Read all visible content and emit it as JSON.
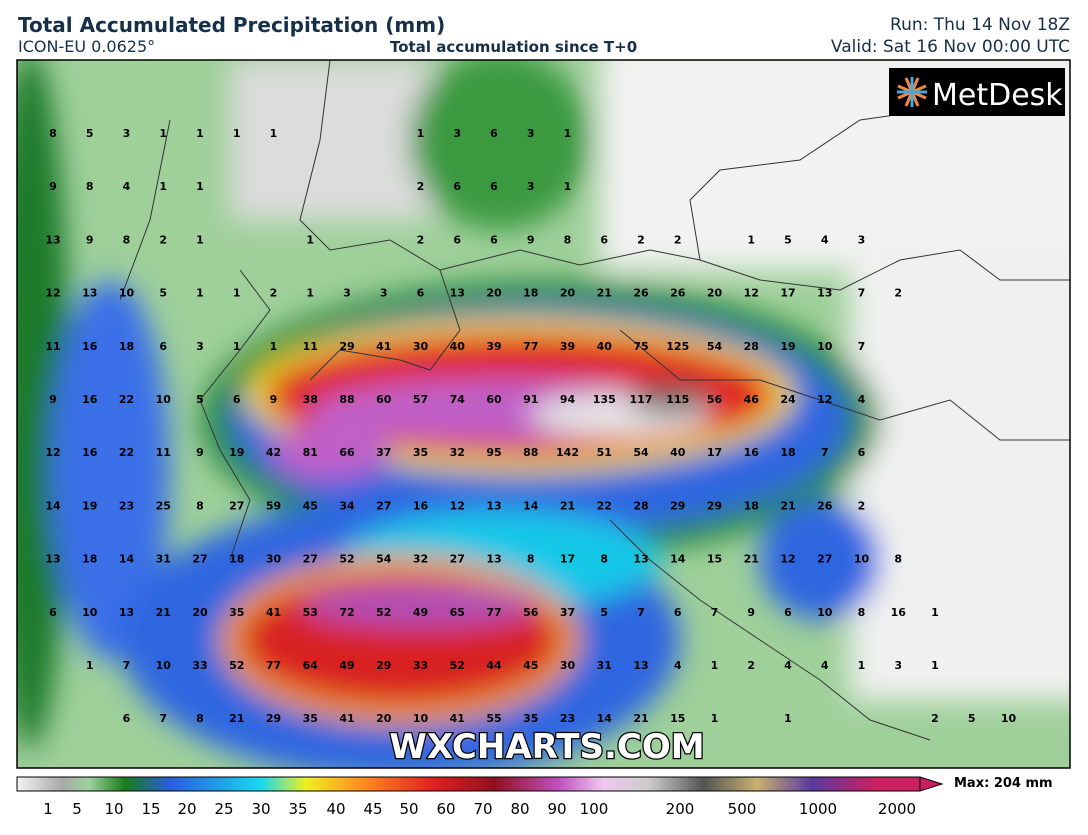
{
  "header": {
    "title": "Total Accumulated Precipitation (mm)",
    "model": "ICON-EU 0.0625°",
    "subtitle": "Total accumulation since T+0",
    "run": "Run: Thu 14 Nov 18Z",
    "valid": "Valid: Sat 16 Nov 00:00 UTC"
  },
  "logo": "MetDesk",
  "watermark": "WXCHARTS.COM",
  "grid_values": [
    [
      8,
      5,
      3,
      1,
      1,
      1,
      1,
      null,
      null,
      null,
      1,
      3,
      6,
      3,
      1
    ],
    [
      9,
      8,
      4,
      1,
      1,
      null,
      null,
      null,
      null,
      null,
      2,
      6,
      6,
      3,
      1
    ],
    [
      13,
      9,
      8,
      2,
      1,
      null,
      null,
      1,
      null,
      null,
      2,
      6,
      6,
      9,
      8,
      6,
      2,
      2,
      null,
      1,
      5,
      4,
      3
    ],
    [
      12,
      13,
      10,
      5,
      1,
      1,
      2,
      1,
      3,
      3,
      6,
      13,
      20,
      18,
      20,
      21,
      26,
      26,
      20,
      12,
      17,
      13,
      7,
      2
    ],
    [
      11,
      16,
      18,
      6,
      3,
      1,
      1,
      11,
      29,
      41,
      30,
      40,
      39,
      77,
      39,
      40,
      75,
      125,
      54,
      28,
      19,
      10,
      7
    ],
    [
      9,
      16,
      22,
      10,
      5,
      6,
      9,
      38,
      88,
      60,
      57,
      74,
      60,
      91,
      94,
      135,
      117,
      115,
      56,
      46,
      24,
      12,
      4
    ],
    [
      12,
      16,
      22,
      11,
      9,
      19,
      42,
      81,
      66,
      37,
      35,
      32,
      95,
      88,
      142,
      51,
      54,
      40,
      17,
      16,
      18,
      7,
      6
    ],
    [
      14,
      19,
      23,
      25,
      8,
      27,
      59,
      45,
      34,
      27,
      16,
      12,
      13,
      14,
      21,
      22,
      28,
      29,
      29,
      18,
      21,
      26,
      2
    ],
    [
      13,
      18,
      14,
      31,
      27,
      18,
      30,
      27,
      52,
      54,
      32,
      27,
      13,
      8,
      17,
      8,
      13,
      14,
      15,
      21,
      12,
      27,
      10,
      8
    ],
    [
      6,
      10,
      13,
      21,
      20,
      35,
      41,
      53,
      72,
      52,
      49,
      65,
      77,
      56,
      37,
      5,
      7,
      6,
      7,
      9,
      6,
      10,
      8,
      16,
      1
    ],
    [
      null,
      1,
      7,
      10,
      33,
      52,
      77,
      64,
      49,
      29,
      33,
      52,
      44,
      45,
      30,
      31,
      13,
      4,
      1,
      2,
      4,
      4,
      1,
      3,
      1
    ],
    [
      null,
      null,
      6,
      7,
      8,
      21,
      29,
      35,
      41,
      20,
      10,
      41,
      55,
      35,
      23,
      14,
      21,
      15,
      1,
      null,
      1,
      null,
      null,
      null,
      2,
      5,
      10
    ]
  ],
  "colorbar": {
    "labels": [
      1,
      5,
      10,
      15,
      20,
      25,
      30,
      35,
      40,
      45,
      50,
      60,
      70,
      80,
      90,
      100,
      200,
      500,
      1000,
      2000
    ],
    "max_label": "Max: 204 mm"
  }
}
